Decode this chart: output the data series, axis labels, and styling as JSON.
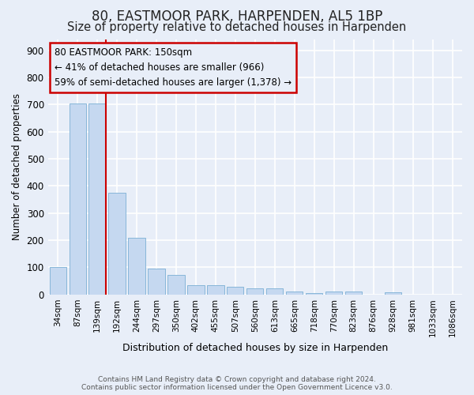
{
  "title": "80, EASTMOOR PARK, HARPENDEN, AL5 1BP",
  "subtitle": "Size of property relative to detached houses in Harpenden",
  "xlabel": "Distribution of detached houses by size in Harpenden",
  "ylabel": "Number of detached properties",
  "categories": [
    "34sqm",
    "87sqm",
    "139sqm",
    "192sqm",
    "244sqm",
    "297sqm",
    "350sqm",
    "402sqm",
    "455sqm",
    "507sqm",
    "560sqm",
    "613sqm",
    "665sqm",
    "718sqm",
    "770sqm",
    "823sqm",
    "876sqm",
    "928sqm",
    "981sqm",
    "1033sqm",
    "1086sqm"
  ],
  "values": [
    100,
    705,
    705,
    375,
    208,
    95,
    72,
    33,
    33,
    27,
    22,
    22,
    10,
    5,
    10,
    10,
    0,
    8,
    0,
    0,
    0
  ],
  "bar_color": "#c5d8f0",
  "bar_edge_color": "#7aafd4",
  "vline_x": 2.0,
  "vline_color": "#cc0000",
  "annotation_text": "80 EASTMOOR PARK: 150sqm\n← 41% of detached houses are smaller (966)\n59% of semi-detached houses are larger (1,378) →",
  "annotation_edge_color": "#cc0000",
  "bg_color": "#e8eef8",
  "grid_color": "#ffffff",
  "footer_line1": "Contains HM Land Registry data © Crown copyright and database right 2024.",
  "footer_line2": "Contains public sector information licensed under the Open Government Licence v3.0.",
  "ylim_max": 940,
  "yticks": [
    0,
    100,
    200,
    300,
    400,
    500,
    600,
    700,
    800,
    900
  ],
  "title_fontsize": 12,
  "subtitle_fontsize": 10.5
}
